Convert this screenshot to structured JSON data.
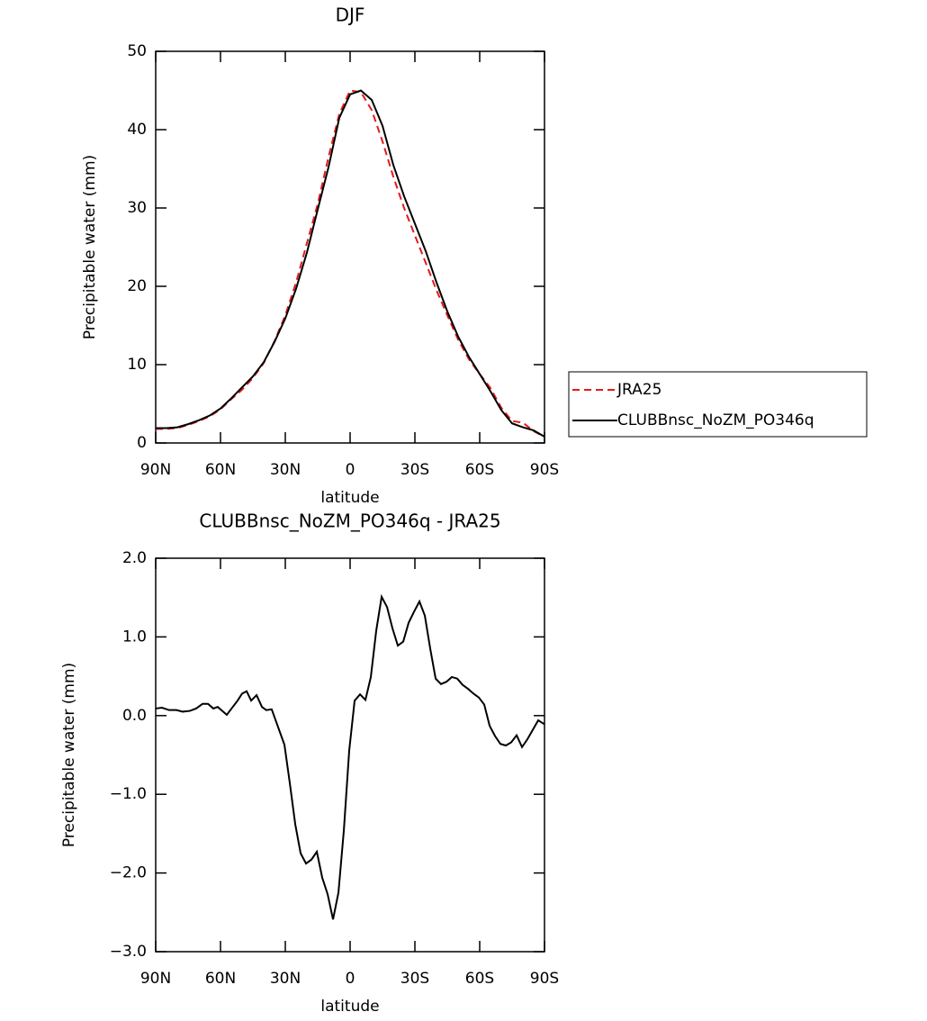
{
  "chart_data": [
    {
      "type": "line",
      "title": "DJF",
      "xlabel": "latitude",
      "ylabel": "Precipitable water (mm)",
      "x": [
        90,
        85,
        80,
        75,
        70,
        65,
        60,
        55,
        50,
        45,
        40,
        35,
        30,
        25,
        20,
        15,
        10,
        5,
        0,
        -5,
        -10,
        -15,
        -20,
        -25,
        -30,
        -35,
        -40,
        -45,
        -50,
        -55,
        -60,
        -65,
        -70,
        -75,
        -80,
        -85,
        -90
      ],
      "series": [
        {
          "name": "JRA25",
          "color": "#e41a1c",
          "linestyle": "dashed",
          "values": [
            1.8,
            1.8,
            1.9,
            2.3,
            2.8,
            3.4,
            4.3,
            5.6,
            6.8,
            8.3,
            10.2,
            13,
            16.3,
            20.5,
            25.5,
            30.5,
            36.5,
            42,
            45,
            44.8,
            42.5,
            38.5,
            34,
            30,
            26.5,
            23,
            19.5,
            16.3,
            13.2,
            10.7,
            8.8,
            7,
            4.5,
            2.8,
            2.6,
            1.5,
            0.8
          ]
        },
        {
          "name": "CLUBBnsc_NoZM_PO346q",
          "color": "#000000",
          "linestyle": "solid",
          "values": [
            1.9,
            1.9,
            2.0,
            2.4,
            2.9,
            3.5,
            4.4,
            5.7,
            7.1,
            8.5,
            10.3,
            12.9,
            15.9,
            19.7,
            24.3,
            29.8,
            35.2,
            41.5,
            44.5,
            45,
            43.8,
            40.5,
            35.5,
            31.5,
            28,
            24.5,
            20.5,
            16.8,
            13.6,
            11,
            8.8,
            6.6,
            4.2,
            2.5,
            2,
            1.6,
            0.8
          ]
        }
      ],
      "xlim": [
        90,
        -90
      ],
      "xticks": [
        {
          "value": 90,
          "label": "90N"
        },
        {
          "value": 60,
          "label": "60N"
        },
        {
          "value": 30,
          "label": "30N"
        },
        0,
        {
          "value": -30,
          "label": "30S"
        },
        {
          "value": -60,
          "label": "60S"
        },
        {
          "value": -90,
          "label": "90S"
        }
      ],
      "ylim": [
        0,
        50
      ],
      "yticks": [
        0,
        10,
        20,
        30,
        40,
        50
      ],
      "legend": "right"
    },
    {
      "type": "line",
      "title": "CLUBBnsc_NoZM_PO346q - JRA25",
      "xlabel": "latitude",
      "ylabel": "Precipitable water (mm)",
      "x": [
        90,
        87.1,
        83.8,
        80.4,
        77.5,
        74.2,
        71.3,
        68.3,
        65.8,
        63.3,
        61.3,
        58.8,
        57.1,
        54.6,
        52.1,
        50,
        47.9,
        45.8,
        43.3,
        40.8,
        38.8,
        36.3,
        30.4,
        27.9,
        25.4,
        22.9,
        20.4,
        17.9,
        15.4,
        12.9,
        10.4,
        7.9,
        5.4,
        2.9,
        0.4,
        -2.1,
        -4.6,
        -7.1,
        -9.6,
        -12.1,
        -14.6,
        -17.1,
        -19.6,
        -22.1,
        -24.6,
        -27.1,
        -29.6,
        -32.1,
        -34.6,
        -37.1,
        -39.6,
        -42.1,
        -44.6,
        -47.1,
        -49.6,
        -52.1,
        -54.6,
        -57.1,
        -59.6,
        -62.1,
        -64.6,
        -67.1,
        -69.6,
        -72.1,
        -74.6,
        -77.1,
        -79.6,
        -82.1,
        -84.6,
        -87.1,
        -90
      ],
      "series": [
        {
          "color": "#000000",
          "linestyle": "solid",
          "values": [
            0.09,
            0.1,
            0.07,
            0.07,
            0.05,
            0.06,
            0.09,
            0.15,
            0.15,
            0.09,
            0.11,
            0.05,
            0.01,
            0.1,
            0.19,
            0.28,
            0.31,
            0.19,
            0.26,
            0.11,
            0.07,
            0.08,
            -0.37,
            -0.86,
            -1.38,
            -1.75,
            -1.88,
            -1.83,
            -1.73,
            -2.06,
            -2.27,
            -2.59,
            -2.25,
            -1.46,
            -0.44,
            0.19,
            0.27,
            0.2,
            0.49,
            1.08,
            1.51,
            1.38,
            1.11,
            0.89,
            0.94,
            1.18,
            1.32,
            1.45,
            1.27,
            0.85,
            0.47,
            0.4,
            0.43,
            0.49,
            0.47,
            0.39,
            0.34,
            0.28,
            0.23,
            0.14,
            -0.13,
            -0.26,
            -0.36,
            -0.38,
            -0.34,
            -0.25,
            -0.4,
            -0.3,
            -0.18,
            -0.06,
            -0.11
          ]
        }
      ],
      "xlim": [
        90,
        -90
      ],
      "xticks": [
        {
          "value": 90,
          "label": "90N"
        },
        {
          "value": 60,
          "label": "60N"
        },
        {
          "value": 30,
          "label": "30N"
        },
        0,
        {
          "value": -30,
          "label": "30S"
        },
        {
          "value": -60,
          "label": "60S"
        },
        {
          "value": -90,
          "label": "90S"
        }
      ],
      "ylim": [
        -3,
        2
      ],
      "yticks": [
        {
          "value": -3,
          "label": "−3.0"
        },
        {
          "value": -2,
          "label": "−2.0"
        },
        {
          "value": -1,
          "label": "−1.0"
        },
        {
          "value": 0,
          "label": "0.0"
        },
        {
          "value": 1,
          "label": "1.0"
        },
        {
          "value": 2,
          "label": "2.0"
        }
      ]
    }
  ]
}
